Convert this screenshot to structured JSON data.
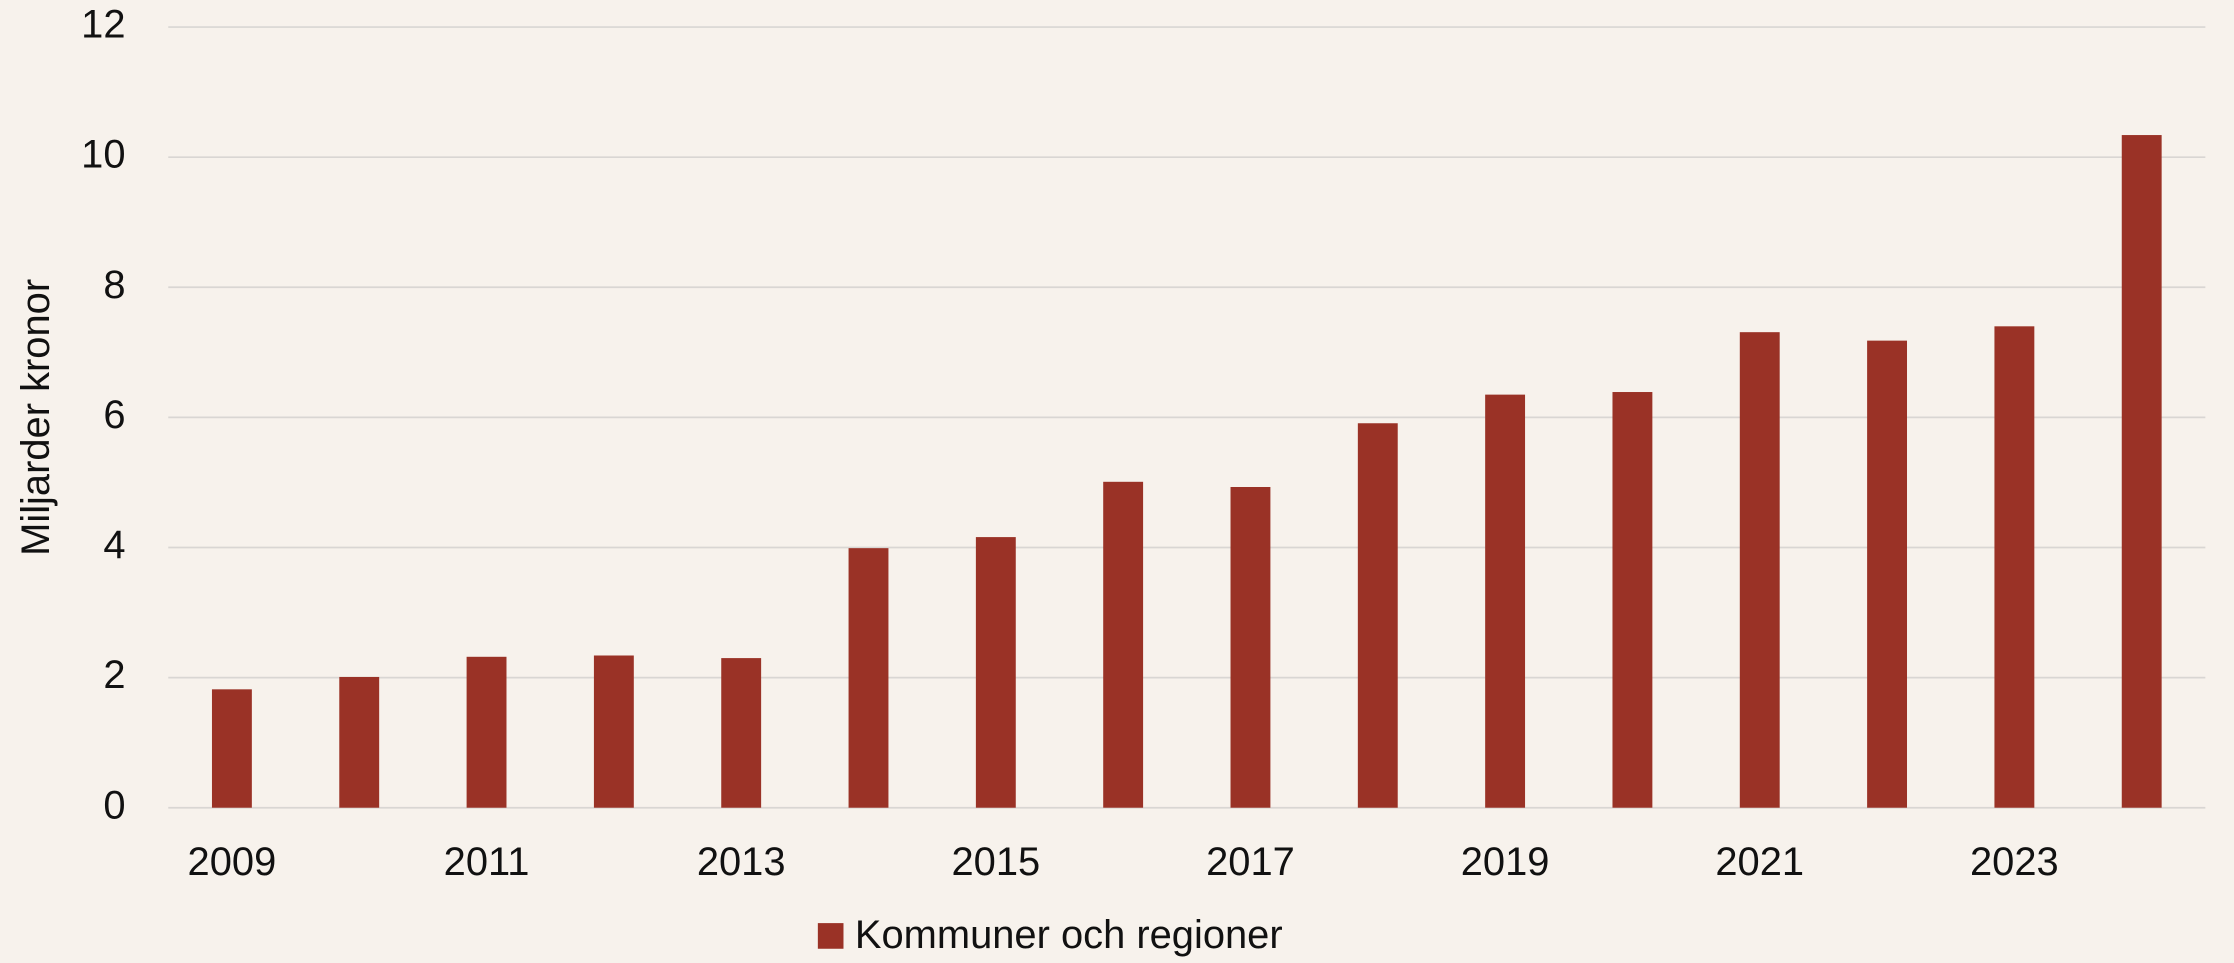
{
  "chart_data": {
    "type": "bar",
    "y_label": "Miljarder kronor",
    "categories": [
      "2009",
      null,
      "2011",
      null,
      "2013",
      null,
      "2015",
      null,
      "2017",
      null,
      "2019",
      null,
      "2021",
      null,
      "2023",
      null
    ],
    "series": [
      {
        "name": "Kommuner och regioner",
        "color": "#9a3226",
        "values": [
          1.82,
          2.01,
          2.32,
          2.34,
          2.3,
          3.99,
          4.16,
          5.01,
          4.93,
          5.91,
          6.35,
          6.39,
          7.31,
          7.18,
          7.4,
          10.34
        ]
      }
    ],
    "ylim": [
      0,
      12
    ],
    "yticks": [
      0,
      2,
      4,
      6,
      8,
      10,
      12
    ],
    "grid": true,
    "legend": "bottom"
  }
}
